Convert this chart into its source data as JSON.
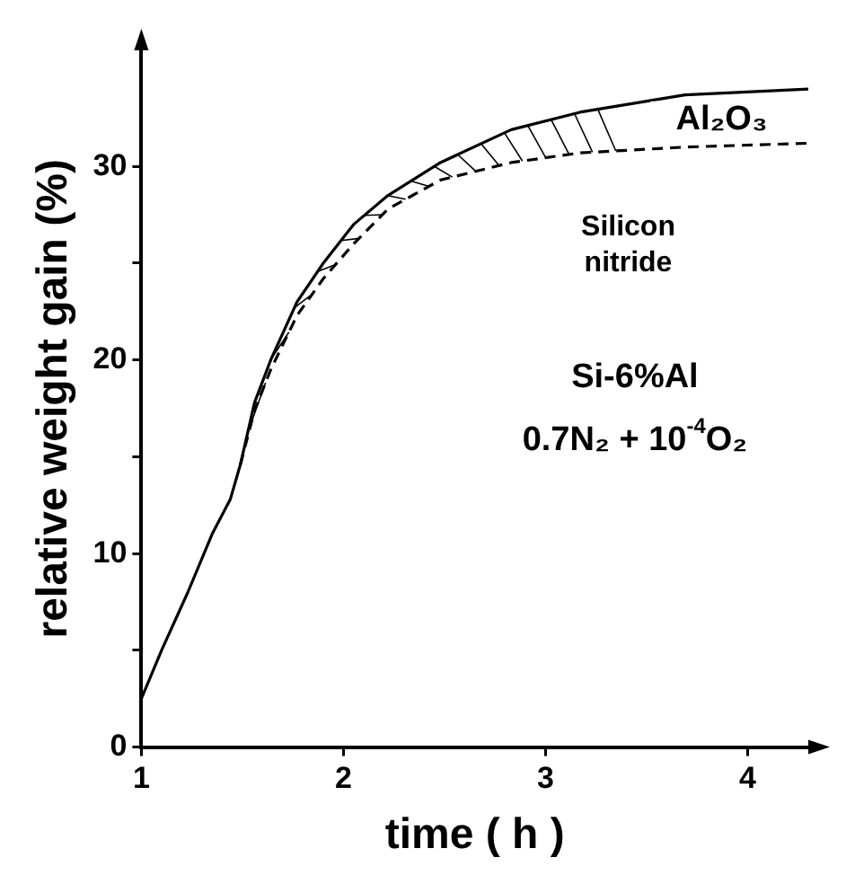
{
  "chart_data": {
    "type": "line",
    "xlabel": "time ( h )",
    "ylabel": "relative weight gain (%)",
    "xlim": [
      1,
      4.3
    ],
    "ylim": [
      0,
      36
    ],
    "xticks": [
      1,
      2,
      3,
      4
    ],
    "yticks": [
      0,
      {
        "value": 5,
        "label": null
      },
      10,
      {
        "value": 15,
        "label": null
      },
      20,
      {
        "value": 25,
        "label": null
      },
      30
    ],
    "series": [
      {
        "color": "#000000",
        "line_style": "solid",
        "x": [
          1,
          1.1,
          1.23,
          1.35,
          1.44,
          1.49,
          1.56,
          1.64,
          1.77,
          1.9,
          2.05,
          2.22,
          2.48,
          2.83,
          3.17,
          3.69,
          4.3
        ],
        "values": [
          2.5,
          5,
          8,
          11,
          12.8,
          14.6,
          17.8,
          20,
          23,
          25,
          27,
          28.5,
          30.2,
          31.9,
          32.8,
          33.7,
          34
        ]
      },
      {
        "color": "#000000",
        "line_style": "dashed",
        "x": [
          1.49,
          1.56,
          1.64,
          1.77,
          1.9,
          2.05,
          2.22,
          2.48,
          2.83,
          3.17,
          3.69,
          4.3
        ],
        "values": [
          14.6,
          17.4,
          19.5,
          22.3,
          24.2,
          26,
          27.8,
          29.3,
          30.2,
          30.7,
          31,
          31.2
        ]
      }
    ],
    "annotations": [
      "Al₂O₃",
      "Silicon nitride",
      "Si-6%Al",
      "0.7N₂ + 10$^{-4}$O₂"
    ],
    "grid": false,
    "legend": false
  }
}
